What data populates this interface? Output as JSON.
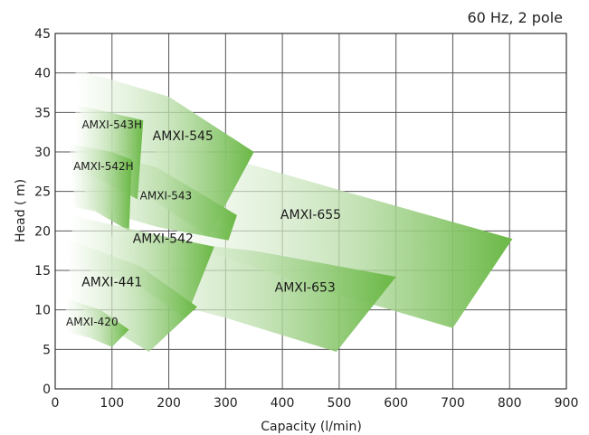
{
  "chart_data": {
    "type": "area",
    "subtitle": "60 Hz, 2 pole",
    "xlabel": "Capacity (l/min)",
    "ylabel": "Head ( m)",
    "xlim": [
      0,
      900
    ],
    "ylim": [
      0,
      45
    ],
    "xticks": [
      0,
      100,
      200,
      300,
      400,
      500,
      600,
      700,
      800,
      900
    ],
    "yticks": [
      0,
      5,
      10,
      15,
      20,
      25,
      30,
      35,
      40,
      45
    ],
    "grid": true,
    "regions": [
      {
        "name": "AMXI-655",
        "outline": [
          [
            170,
            32
          ],
          [
            510,
            25
          ],
          [
            805,
            19
          ],
          [
            700,
            7.7
          ],
          [
            450,
            13
          ],
          [
            220,
            18.5
          ]
        ],
        "label_at": [
          450,
          21.5
        ]
      },
      {
        "name": "AMXI-653",
        "outline": [
          [
            80,
            19.5
          ],
          [
            350,
            17.5
          ],
          [
            600,
            14.2
          ],
          [
            495,
            4.7
          ],
          [
            300,
            9
          ],
          [
            140,
            12
          ]
        ],
        "label_at": [
          440,
          12.3
        ]
      },
      {
        "name": "AMXI-545",
        "outline": [
          [
            35,
            40.5
          ],
          [
            200,
            37
          ],
          [
            350,
            30
          ],
          [
            270,
            19.3
          ],
          [
            150,
            25
          ],
          [
            55,
            29
          ]
        ],
        "label_at": [
          225,
          31.5
        ]
      },
      {
        "name": "AMXI-543",
        "outline": [
          [
            30,
            31
          ],
          [
            180,
            28
          ],
          [
            320,
            22
          ],
          [
            305,
            18.8
          ],
          [
            180,
            20.5
          ],
          [
            60,
            23
          ]
        ],
        "label_at": [
          195,
          24
        ]
      },
      {
        "name": "AMXI-543H",
        "outline": [
          [
            35,
            36
          ],
          [
            155,
            34
          ],
          [
            145,
            24
          ],
          [
            80,
            26.5
          ],
          [
            40,
            27.5
          ]
        ],
        "label_at": [
          100,
          33
        ]
      },
      {
        "name": "AMXI-542H",
        "outline": [
          [
            25,
            31
          ],
          [
            100,
            30
          ],
          [
            135,
            29
          ],
          [
            130,
            20
          ],
          [
            70,
            22.5
          ],
          [
            35,
            23
          ]
        ],
        "label_at": [
          85,
          27.7
        ]
      },
      {
        "name": "AMXI-542",
        "outline": [
          [
            25,
            22
          ],
          [
            180,
            19.5
          ],
          [
            280,
            18
          ],
          [
            230,
            9
          ],
          [
            150,
            13
          ],
          [
            40,
            15.5
          ]
        ],
        "label_at": [
          190,
          18.5
        ]
      },
      {
        "name": "AMXI-441",
        "outline": [
          [
            20,
            19
          ],
          [
            150,
            15.5
          ],
          [
            250,
            10.4
          ],
          [
            165,
            4.7
          ],
          [
            100,
            7.5
          ],
          [
            30,
            11
          ]
        ],
        "label_at": [
          100,
          13
        ]
      },
      {
        "name": "AMXI-420",
        "outline": [
          [
            18,
            11.5
          ],
          [
            80,
            10
          ],
          [
            130,
            7.5
          ],
          [
            100,
            5.3
          ],
          [
            60,
            6.5
          ],
          [
            20,
            7.2
          ]
        ],
        "label_at": [
          65,
          8
        ]
      }
    ],
    "colors": {
      "light": "#ffffff",
      "dark": "#6ab845",
      "grid": "#555555"
    }
  }
}
